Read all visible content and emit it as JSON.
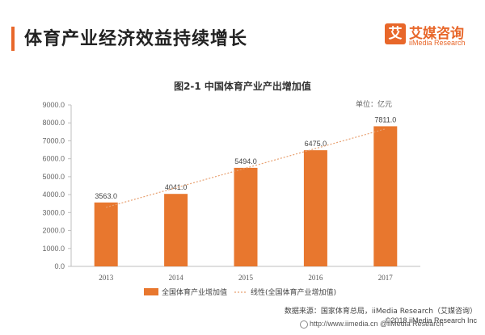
{
  "header": {
    "title": "体育产业经济效益持续增长",
    "logo_mark": "艾",
    "logo_cn": "艾媒咨询",
    "logo_en": "iiMedia Research"
  },
  "chart_data": {
    "type": "bar",
    "title": "图2-1 中国体育产业产出增加值",
    "unit": "单位：亿元",
    "categories": [
      "2013",
      "2014",
      "2015",
      "2016",
      "2017"
    ],
    "series": [
      {
        "name": "全国体育产业增加值",
        "values": [
          3563.0,
          4041.0,
          5494.0,
          6475.0,
          7811.0
        ],
        "color": "#e8772e"
      }
    ],
    "trendline": {
      "name": "线性(全国体育产业增加值)",
      "color": "#e8a070",
      "style": "dotted"
    },
    "data_labels": [
      "3563.0",
      "4041.0",
      "5494.0",
      "6475.0",
      "7811.0"
    ],
    "y_ticks": [
      "0.0",
      "1000.0",
      "2000.0",
      "3000.0",
      "4000.0",
      "5000.0",
      "6000.0",
      "7000.0",
      "8000.0",
      "9000.0"
    ],
    "ylim": [
      0,
      9000
    ],
    "grid": false,
    "legend_position": "bottom"
  },
  "source": "数据来源：国家体育总局，iiMedia Research（艾媒咨询）",
  "copyright": "©2018 iiMedia Research Inc",
  "footer": {
    "url": "http://www.iimedia.cn   @iiMedia Research"
  }
}
